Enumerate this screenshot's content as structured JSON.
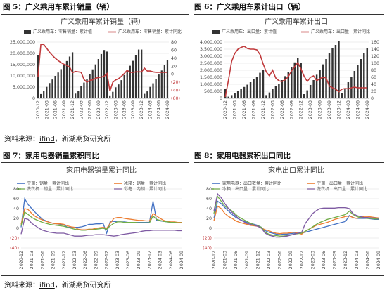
{
  "figures": [
    {
      "title": "图 5：广义乘用车累计销量（辆）"
    },
    {
      "title": "图 6：广义乘用车累计出口（辆）"
    },
    {
      "title": "图 7：家用电器销量累积同比"
    },
    {
      "title": "图 8：家用电器累积出口同比"
    }
  ],
  "source": {
    "prefix": "资料来源：",
    "link": "ifind",
    "suffix": "，新湖期货研究所"
  },
  "colors": {
    "bar": "#333333",
    "red": "#c0393b",
    "neg_tick": "#c0393b",
    "blue": "#4472c4",
    "orange": "#ed7d31",
    "green": "#70ad47",
    "purple": "#7e5aa2",
    "grid": "#d9d9d9"
  },
  "chart_data": [
    {
      "type": "bar",
      "title": "广义乘用车累计销量（辆）",
      "categories": [
        "2020-12",
        "2021-01",
        "2021-02",
        "2021-03",
        "2021-04",
        "2021-05",
        "2021-06",
        "2021-07",
        "2021-08",
        "2021-09",
        "2021-10",
        "2021-11",
        "2021-12",
        "2022-01",
        "2022-02",
        "2022-03",
        "2022-04",
        "2022-05",
        "2022-06",
        "2022-07",
        "2022-08",
        "2022-09",
        "2022-10",
        "2022-11",
        "2022-12",
        "2023-01",
        "2023-02",
        "2023-03",
        "2023-04",
        "2023-05",
        "2023-06",
        "2023-07",
        "2023-08",
        "2023-09",
        "2023-10",
        "2023-11",
        "2023-12",
        "2024-01",
        "2024-02",
        "2024-03",
        "2024-04",
        "2024-05",
        "2024-06",
        "2024-07",
        "2024-08",
        "2024-09"
      ],
      "x_tick_labels": [
        "2020-12",
        "2021-03",
        "2021-06",
        "2021-09",
        "2021-12",
        "2022-03",
        "2022-06",
        "2022-09",
        "2022-12",
        "2023-03",
        "2023-06",
        "2023-09",
        "2023-12",
        "2024-03",
        "2024-06",
        "2024-09"
      ],
      "y_ticks_left": [
        "0",
        "5,000,000",
        "10,000,000",
        "15,000,000",
        "20,000,000",
        "25,000,000"
      ],
      "y_ticks_right": [
        "(60)",
        "(40)",
        "(20)",
        "0",
        "20",
        "40",
        "60",
        "80"
      ],
      "ylim": [
        0,
        25000000
      ],
      "ylim_right": [
        -60,
        80
      ],
      "series": [
        {
          "name": "广义乘用车：零售销量：累计值",
          "kind": "bar",
          "axis": "left",
          "values": [
            19300000,
            1900000,
            3200000,
            5100000,
            6800000,
            8400000,
            10000000,
            11500000,
            13000000,
            14800000,
            16600000,
            18600000,
            20500000,
            2100000,
            3400000,
            5500000,
            7000000,
            8700000,
            10900000,
            12900000,
            15100000,
            17500000,
            19700000,
            21500000,
            20800000,
            1300000,
            2900000,
            4900000,
            6200000,
            8100000,
            10400000,
            12200000,
            14500000,
            16700000,
            19300000,
            21700000,
            21700000,
            2000000,
            3100000,
            5100000,
            6700000,
            8500000,
            10600000,
            12400000,
            14700000,
            17000000
          ]
        },
        {
          "name": "广义乘用车：零售销量：累计同比",
          "kind": "line",
          "axis": "right",
          "values": [
            -6,
            75,
            74,
            65,
            55,
            47,
            40,
            34,
            29,
            25,
            22,
            18,
            4,
            7,
            6,
            5,
            -13,
            -20,
            -15,
            -14,
            -10,
            -8,
            -7,
            -5,
            2,
            -42,
            -20,
            -14,
            -11,
            -5,
            2,
            10,
            5,
            5,
            6,
            6,
            6,
            15,
            8,
            8,
            6,
            5,
            5,
            5,
            5,
            5
          ]
        }
      ]
    },
    {
      "type": "bar",
      "title": "广义乘用车累计出口",
      "categories": [
        "2020-12",
        "2021-01",
        "2021-02",
        "2021-03",
        "2021-04",
        "2021-05",
        "2021-06",
        "2021-07",
        "2021-08",
        "2021-09",
        "2021-10",
        "2021-11",
        "2021-12",
        "2022-01",
        "2022-02",
        "2022-03",
        "2022-04",
        "2022-05",
        "2022-06",
        "2022-07",
        "2022-08",
        "2022-09",
        "2022-10",
        "2022-11",
        "2022-12",
        "2023-01",
        "2023-02",
        "2023-03",
        "2023-04",
        "2023-05",
        "2023-06",
        "2023-07",
        "2023-08",
        "2023-09",
        "2023-10",
        "2023-11",
        "2023-12",
        "2024-01",
        "2024-02",
        "2024-03",
        "2024-04",
        "2024-05",
        "2024-06",
        "2024-07",
        "2024-08",
        "2024-09"
      ],
      "x_tick_labels": [
        "2020-12",
        "2021-03",
        "2021-06",
        "2021-09",
        "2021-12",
        "2022-03",
        "2022-06",
        "2022-09",
        "2022-12",
        "2023-03",
        "2023-06",
        "2023-09",
        "2023-12",
        "2024-03",
        "2024-06",
        "2024-09"
      ],
      "y_ticks_left": [
        "0",
        "500,000",
        "1,000,000",
        "1,500,000",
        "2,000,000",
        "2,500,000",
        "3,000,000",
        "3,500,000",
        "4,000,000"
      ],
      "y_ticks_right": [
        "0",
        "20",
        "40",
        "60",
        "80",
        "100",
        "120",
        "140",
        "160"
      ],
      "ylim": [
        0,
        4000000
      ],
      "ylim_right": [
        0,
        160
      ],
      "series": [
        {
          "name": "广义乘用车：出口量：累计值",
          "kind": "bar",
          "axis": "left",
          "values": [
            700000,
            120000,
            230000,
            370000,
            510000,
            650000,
            810000,
            970000,
            1150000,
            1360000,
            1550000,
            1820000,
            2000000,
            230000,
            420000,
            660000,
            850000,
            1050000,
            1300000,
            1580000,
            1870000,
            2200000,
            2560000,
            2880000,
            2520000,
            300000,
            570000,
            950000,
            1300000,
            1680000,
            2000000,
            2420000,
            2800000,
            3200000,
            3550000,
            3800000,
            4050000,
            350000,
            700000,
            1150000,
            1550000,
            1950000,
            2350000,
            2800000,
            3200000,
            3600000
          ]
        },
        {
          "name": "广义乘用车：出口量：累计同比",
          "kind": "line",
          "axis": "right",
          "values": [
            4,
            52,
            105,
            128,
            140,
            145,
            148,
            142,
            140,
            140,
            138,
            125,
            98,
            75,
            64,
            80,
            58,
            50,
            48,
            53,
            62,
            78,
            90,
            102,
            84,
            63,
            48,
            60,
            64,
            50,
            56,
            60,
            58,
            35,
            30,
            26,
            19,
            26,
            28,
            27,
            30,
            32,
            30,
            30,
            30,
            30
          ]
        }
      ]
    },
    {
      "type": "line",
      "title": "家用电器销量累计同比",
      "x_tick_labels": [
        "2020-12",
        "2021-03",
        "2021-06",
        "2021-09",
        "2021-12",
        "2022-03",
        "2022-06",
        "2022-09",
        "2022-12",
        "2023-03",
        "2023-06",
        "2023-09",
        "2023-12",
        "2024-03",
        "2024-06",
        "2024-09"
      ],
      "y_ticks": [
        "(40)",
        "(20)",
        "0",
        "20",
        "40",
        "60",
        "80"
      ],
      "ylim": [
        -40,
        80
      ],
      "series": [
        {
          "name": "空调：销量：累计同比",
          "color": "#4472c4",
          "values": [
            2,
            60,
            48,
            40,
            32,
            25,
            18,
            15,
            12,
            10,
            9,
            8,
            7,
            2,
            2,
            2,
            2,
            3,
            5,
            8,
            8,
            9,
            9,
            10,
            -10,
            14,
            14,
            13,
            13,
            13,
            12,
            12,
            12,
            12,
            12,
            12,
            12,
            55,
            16,
            15,
            14,
            13,
            12,
            12,
            12,
            12
          ]
        },
        {
          "name": "冰箱：销量：累计同比",
          "color": "#ed7d31",
          "values": [
            8,
            40,
            38,
            30,
            24,
            20,
            17,
            14,
            12,
            10,
            9,
            9,
            8,
            5,
            3,
            2,
            -2,
            -3,
            -3,
            -2,
            -2,
            0,
            1,
            2,
            0,
            10,
            20,
            22,
            22,
            20,
            19,
            18,
            17,
            16,
            16,
            15,
            15,
            30,
            25,
            20,
            16,
            14,
            13,
            13,
            12,
            12
          ]
        },
        {
          "name": "洗衣机：销量：累计同比",
          "color": "#70ad47",
          "values": [
            5,
            33,
            28,
            22,
            18,
            15,
            12,
            10,
            8,
            7,
            6,
            5,
            4,
            2,
            0,
            -2,
            -3,
            -4,
            -4,
            -3,
            -3,
            -2,
            -1,
            0,
            -2,
            5,
            10,
            13,
            13,
            12,
            12,
            12,
            12,
            11,
            11,
            11,
            11,
            25,
            18,
            16,
            14,
            13,
            12,
            12,
            11,
            11
          ]
        },
        {
          "name": "彩电：内销：累计同比",
          "color": "#7e5aa2",
          "values": [
            -12,
            20,
            18,
            10,
            5,
            0,
            -4,
            -6,
            -8,
            -9,
            -10,
            -10,
            -10,
            -12,
            -14,
            -16,
            -16,
            -16,
            -15,
            -14,
            -14,
            -13,
            -13,
            -13,
            -14,
            -15,
            -16,
            -15,
            -13,
            -12,
            -11,
            -10,
            -9,
            -8,
            -6,
            -5,
            -5,
            -4,
            -4,
            -4,
            -4,
            -4,
            -4,
            -4,
            -5,
            -5
          ]
        }
      ]
    },
    {
      "type": "line",
      "title": "家电出口累计同比",
      "x_tick_labels": [
        "2020-12",
        "2021-03",
        "2021-06",
        "2021-09",
        "2021-12",
        "2022-03",
        "2022-06",
        "2022-09",
        "2022-12",
        "2023-03",
        "2023-06",
        "2023-09",
        "2023-12",
        "2024-03",
        "2024-06",
        "2024-09"
      ],
      "y_ticks": [
        "(40)",
        "(20)",
        "0",
        "20",
        "40",
        "60",
        "80"
      ],
      "ylim": [
        -40,
        80
      ],
      "series": [
        {
          "name": "家用电器：出口数量：累计同比",
          "color": "#4472c4",
          "values": [
            20,
            55,
            50,
            42,
            35,
            28,
            22,
            18,
            15,
            12,
            10,
            8,
            6,
            2,
            -5,
            -8,
            -10,
            -12,
            -13,
            -12,
            -12,
            -11,
            -10,
            -10,
            -10,
            -8,
            -6,
            -4,
            -2,
            0,
            2,
            4,
            6,
            8,
            10,
            12,
            14,
            26,
            22,
            20,
            20,
            20,
            20,
            19,
            18,
            18
          ]
        },
        {
          "name": "空调：出口量：累计同比",
          "color": "#ed7d31",
          "values": [
            15,
            45,
            40,
            30,
            24,
            20,
            15,
            12,
            10,
            8,
            6,
            5,
            4,
            0,
            -3,
            -5,
            -8,
            -10,
            -11,
            -10,
            -10,
            -9,
            -8,
            -10,
            -12,
            -6,
            -2,
            2,
            6,
            8,
            10,
            12,
            15,
            18,
            20,
            22,
            24,
            25,
            22,
            20,
            22,
            24,
            24,
            23,
            22,
            21
          ]
        },
        {
          "name": "冰箱：出口量：累计同比",
          "color": "#70ad47",
          "values": [
            30,
            65,
            55,
            45,
            40,
            35,
            28,
            22,
            18,
            14,
            10,
            7,
            5,
            2,
            -8,
            -12,
            -14,
            -15,
            -16,
            -16,
            -15,
            -14,
            -12,
            -11,
            -10,
            -6,
            -2,
            3,
            8,
            12,
            15,
            18,
            20,
            22,
            24,
            26,
            28,
            35,
            28,
            24,
            22,
            21,
            20,
            20,
            19,
            19
          ]
        },
        {
          "name": "洗衣机：出口量：累计同比",
          "color": "#7e5aa2",
          "values": [
            35,
            70,
            62,
            50,
            40,
            32,
            25,
            18,
            14,
            10,
            8,
            6,
            4,
            0,
            -10,
            -14,
            -16,
            -18,
            -18,
            -17,
            -16,
            -14,
            -12,
            -10,
            -8,
            10,
            20,
            30,
            36,
            40,
            41,
            41,
            41,
            41,
            42,
            42,
            42,
            40,
            30,
            26,
            24,
            22,
            22,
            21,
            21,
            20
          ]
        }
      ]
    }
  ]
}
